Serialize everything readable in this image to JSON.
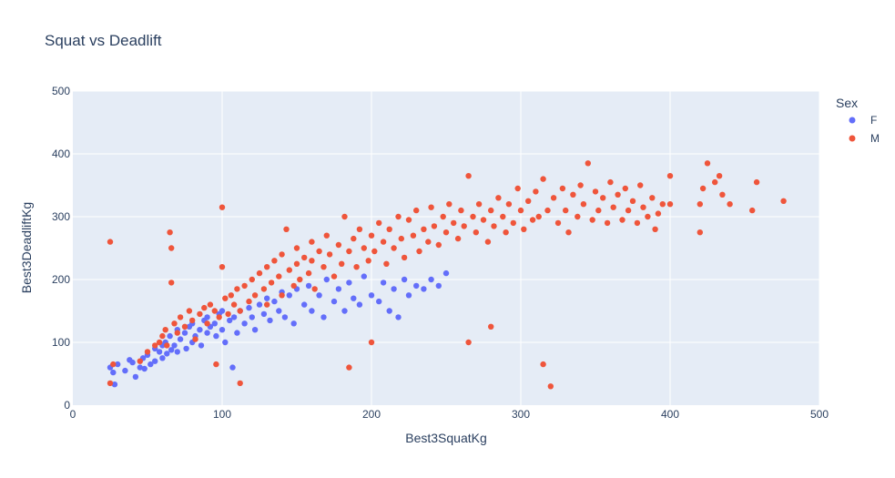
{
  "chart_data": {
    "type": "scatter",
    "title": "Squat vs Deadlift",
    "xlabel": "Best3SquatKg",
    "ylabel": "Best3DeadliftKg",
    "xlim": [
      0,
      500
    ],
    "ylim": [
      0,
      500
    ],
    "xticks": [
      0,
      100,
      200,
      300,
      400,
      500
    ],
    "yticks": [
      0,
      100,
      200,
      300,
      400,
      500
    ],
    "grid": true,
    "plot_bgcolor": "#E5ECF6",
    "legend": {
      "title": "Sex",
      "position": "right",
      "entries": [
        "F",
        "M"
      ]
    },
    "series": [
      {
        "name": "F",
        "color": "#636EFA",
        "points": [
          [
            25,
            60
          ],
          [
            27,
            52
          ],
          [
            28,
            33
          ],
          [
            30,
            65
          ],
          [
            35,
            55
          ],
          [
            38,
            72
          ],
          [
            40,
            68
          ],
          [
            42,
            45
          ],
          [
            45,
            60
          ],
          [
            47,
            75
          ],
          [
            48,
            58
          ],
          [
            50,
            80
          ],
          [
            52,
            65
          ],
          [
            55,
            90
          ],
          [
            55,
            70
          ],
          [
            58,
            85
          ],
          [
            60,
            95
          ],
          [
            60,
            75
          ],
          [
            62,
            100
          ],
          [
            63,
            82
          ],
          [
            65,
            110
          ],
          [
            66,
            88
          ],
          [
            68,
            95
          ],
          [
            70,
            120
          ],
          [
            70,
            85
          ],
          [
            72,
            105
          ],
          [
            75,
            115
          ],
          [
            76,
            90
          ],
          [
            78,
            125
          ],
          [
            80,
            100
          ],
          [
            80,
            130
          ],
          [
            82,
            110
          ],
          [
            85,
            120
          ],
          [
            86,
            95
          ],
          [
            88,
            135
          ],
          [
            90,
            115
          ],
          [
            90,
            140
          ],
          [
            92,
            125
          ],
          [
            95,
            130
          ],
          [
            96,
            110
          ],
          [
            98,
            145
          ],
          [
            100,
            120
          ],
          [
            100,
            150
          ],
          [
            102,
            100
          ],
          [
            105,
            135
          ],
          [
            107,
            60
          ],
          [
            108,
            140
          ],
          [
            110,
            115
          ],
          [
            112,
            150
          ],
          [
            115,
            130
          ],
          [
            118,
            155
          ],
          [
            120,
            140
          ],
          [
            122,
            120
          ],
          [
            125,
            160
          ],
          [
            128,
            145
          ],
          [
            130,
            170
          ],
          [
            132,
            135
          ],
          [
            135,
            165
          ],
          [
            138,
            150
          ],
          [
            140,
            180
          ],
          [
            142,
            140
          ],
          [
            145,
            175
          ],
          [
            148,
            130
          ],
          [
            150,
            185
          ],
          [
            155,
            160
          ],
          [
            158,
            190
          ],
          [
            160,
            150
          ],
          [
            165,
            175
          ],
          [
            168,
            140
          ],
          [
            170,
            200
          ],
          [
            175,
            165
          ],
          [
            178,
            185
          ],
          [
            182,
            150
          ],
          [
            185,
            195
          ],
          [
            188,
            170
          ],
          [
            192,
            160
          ],
          [
            195,
            205
          ],
          [
            200,
            175
          ],
          [
            205,
            165
          ],
          [
            208,
            195
          ],
          [
            212,
            150
          ],
          [
            215,
            185
          ],
          [
            218,
            140
          ],
          [
            222,
            200
          ],
          [
            225,
            175
          ],
          [
            230,
            190
          ],
          [
            235,
            185
          ],
          [
            240,
            200
          ],
          [
            245,
            190
          ],
          [
            250,
            210
          ]
        ]
      },
      {
        "name": "M",
        "color": "#EF553B",
        "points": [
          [
            25,
            260
          ],
          [
            25,
            35
          ],
          [
            27,
            65
          ],
          [
            45,
            70
          ],
          [
            50,
            85
          ],
          [
            55,
            95
          ],
          [
            58,
            100
          ],
          [
            60,
            110
          ],
          [
            62,
            120
          ],
          [
            63,
            95
          ],
          [
            65,
            275
          ],
          [
            66,
            250
          ],
          [
            66,
            195
          ],
          [
            68,
            130
          ],
          [
            70,
            115
          ],
          [
            72,
            140
          ],
          [
            75,
            125
          ],
          [
            78,
            150
          ],
          [
            80,
            135
          ],
          [
            82,
            105
          ],
          [
            85,
            145
          ],
          [
            88,
            155
          ],
          [
            90,
            130
          ],
          [
            92,
            160
          ],
          [
            95,
            150
          ],
          [
            96,
            65
          ],
          [
            98,
            140
          ],
          [
            100,
            315
          ],
          [
            100,
            220
          ],
          [
            102,
            170
          ],
          [
            104,
            145
          ],
          [
            106,
            175
          ],
          [
            108,
            160
          ],
          [
            110,
            185
          ],
          [
            112,
            35
          ],
          [
            112,
            150
          ],
          [
            115,
            190
          ],
          [
            118,
            165
          ],
          [
            120,
            200
          ],
          [
            122,
            175
          ],
          [
            125,
            210
          ],
          [
            128,
            185
          ],
          [
            130,
            220
          ],
          [
            130,
            160
          ],
          [
            133,
            195
          ],
          [
            135,
            230
          ],
          [
            138,
            205
          ],
          [
            140,
            240
          ],
          [
            140,
            175
          ],
          [
            143,
            280
          ],
          [
            145,
            215
          ],
          [
            148,
            190
          ],
          [
            150,
            250
          ],
          [
            150,
            225
          ],
          [
            152,
            200
          ],
          [
            155,
            235
          ],
          [
            158,
            210
          ],
          [
            160,
            260
          ],
          [
            160,
            230
          ],
          [
            162,
            185
          ],
          [
            165,
            245
          ],
          [
            168,
            220
          ],
          [
            170,
            270
          ],
          [
            172,
            240
          ],
          [
            175,
            205
          ],
          [
            178,
            255
          ],
          [
            180,
            225
          ],
          [
            182,
            300
          ],
          [
            185,
            245
          ],
          [
            185,
            60
          ],
          [
            188,
            265
          ],
          [
            190,
            220
          ],
          [
            192,
            280
          ],
          [
            195,
            250
          ],
          [
            198,
            230
          ],
          [
            200,
            100
          ],
          [
            200,
            270
          ],
          [
            202,
            245
          ],
          [
            205,
            290
          ],
          [
            208,
            260
          ],
          [
            210,
            225
          ],
          [
            212,
            280
          ],
          [
            215,
            250
          ],
          [
            218,
            300
          ],
          [
            220,
            265
          ],
          [
            222,
            235
          ],
          [
            225,
            295
          ],
          [
            228,
            270
          ],
          [
            230,
            310
          ],
          [
            232,
            245
          ],
          [
            235,
            280
          ],
          [
            238,
            260
          ],
          [
            240,
            315
          ],
          [
            242,
            285
          ],
          [
            245,
            255
          ],
          [
            248,
            300
          ],
          [
            250,
            275
          ],
          [
            252,
            320
          ],
          [
            255,
            290
          ],
          [
            258,
            265
          ],
          [
            260,
            310
          ],
          [
            262,
            285
          ],
          [
            265,
            365
          ],
          [
            265,
            100
          ],
          [
            268,
            300
          ],
          [
            270,
            275
          ],
          [
            272,
            320
          ],
          [
            275,
            295
          ],
          [
            278,
            260
          ],
          [
            280,
            125
          ],
          [
            280,
            310
          ],
          [
            282,
            285
          ],
          [
            285,
            330
          ],
          [
            288,
            300
          ],
          [
            290,
            275
          ],
          [
            292,
            320
          ],
          [
            295,
            290
          ],
          [
            298,
            345
          ],
          [
            300,
            310
          ],
          [
            302,
            280
          ],
          [
            305,
            325
          ],
          [
            308,
            295
          ],
          [
            310,
            340
          ],
          [
            312,
            300
          ],
          [
            315,
            360
          ],
          [
            315,
            65
          ],
          [
            318,
            310
          ],
          [
            320,
            30
          ],
          [
            322,
            330
          ],
          [
            325,
            290
          ],
          [
            328,
            345
          ],
          [
            330,
            310
          ],
          [
            332,
            275
          ],
          [
            335,
            335
          ],
          [
            338,
            300
          ],
          [
            340,
            350
          ],
          [
            342,
            320
          ],
          [
            345,
            385
          ],
          [
            348,
            295
          ],
          [
            350,
            340
          ],
          [
            352,
            310
          ],
          [
            355,
            330
          ],
          [
            358,
            290
          ],
          [
            360,
            355
          ],
          [
            362,
            315
          ],
          [
            365,
            335
          ],
          [
            368,
            295
          ],
          [
            370,
            345
          ],
          [
            372,
            310
          ],
          [
            375,
            325
          ],
          [
            378,
            290
          ],
          [
            380,
            350
          ],
          [
            382,
            315
          ],
          [
            385,
            300
          ],
          [
            388,
            330
          ],
          [
            390,
            280
          ],
          [
            392,
            305
          ],
          [
            395,
            320
          ],
          [
            400,
            365
          ],
          [
            400,
            320
          ],
          [
            420,
            275
          ],
          [
            420,
            320
          ],
          [
            422,
            345
          ],
          [
            425,
            385
          ],
          [
            430,
            355
          ],
          [
            433,
            365
          ],
          [
            435,
            335
          ],
          [
            440,
            320
          ],
          [
            455,
            310
          ],
          [
            458,
            355
          ],
          [
            476,
            325
          ]
        ]
      }
    ]
  }
}
